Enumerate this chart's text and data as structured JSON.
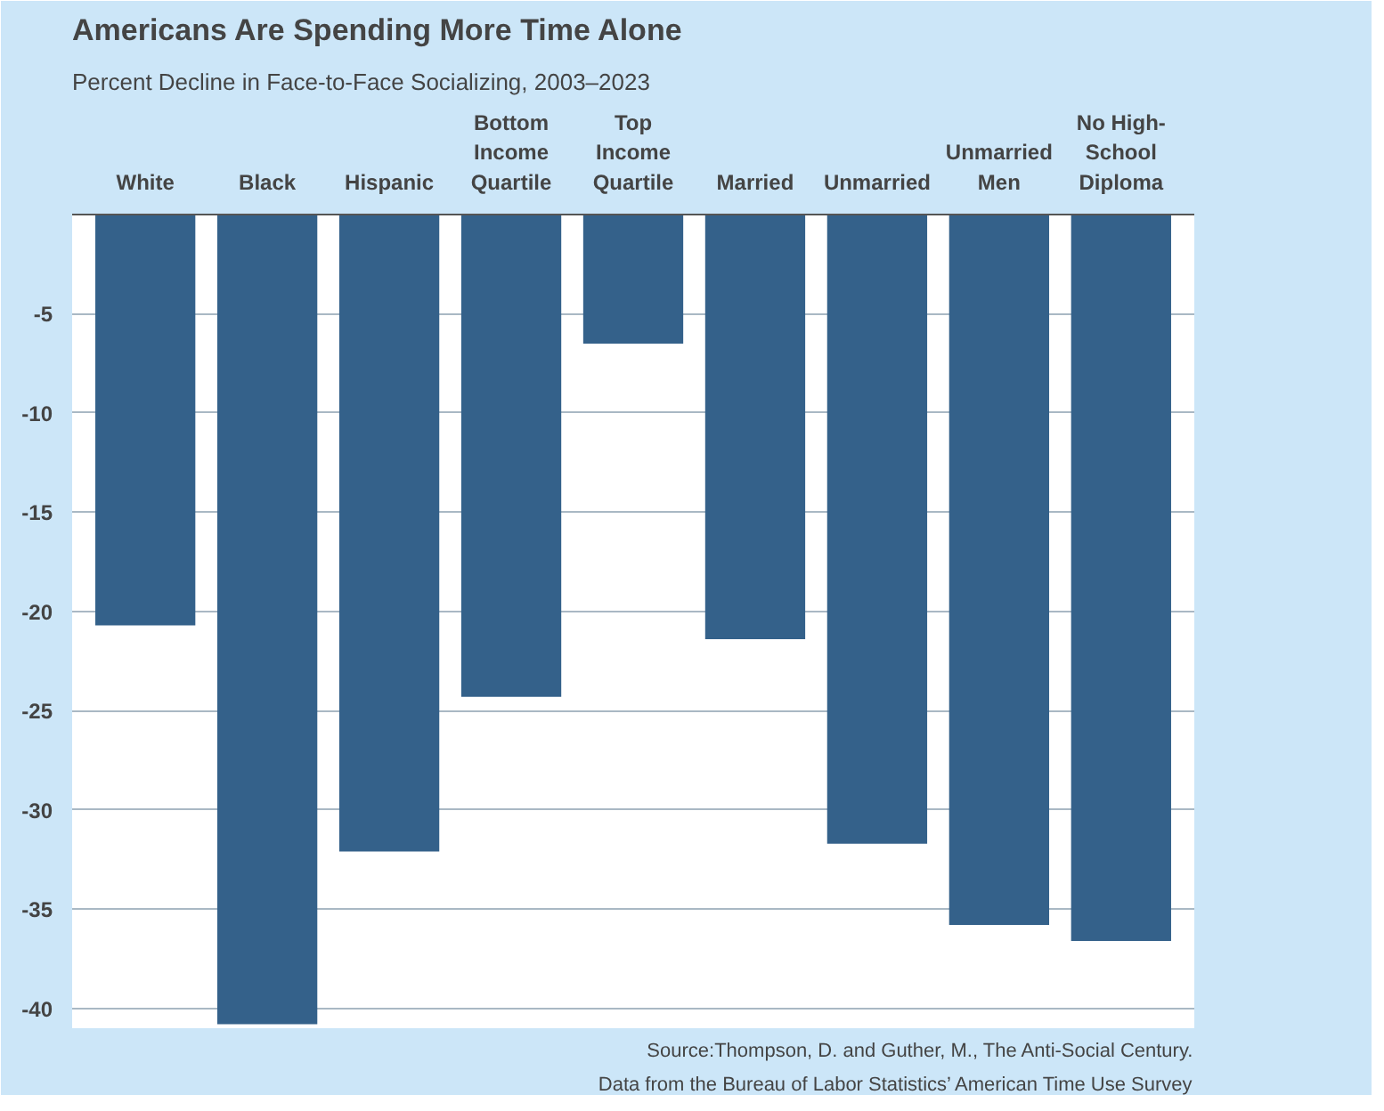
{
  "chart_data": {
    "type": "bar",
    "title": "Americans Are Spending More Time Alone",
    "subtitle": "Percent Decline in Face-to-Face Socializing, 2003–2023",
    "categories": [
      "White",
      "Black",
      "Hispanic",
      "Bottom\nIncome\nQuartile",
      "Top\nIncome\nQuartile",
      "Married",
      "Unmarried",
      "Unmarried\nMen",
      "No High-\nSchool\nDiploma"
    ],
    "values": [
      -20.7,
      -40.8,
      -32.1,
      -24.3,
      -6.5,
      -21.4,
      -31.7,
      -35.8,
      -36.6
    ],
    "color": "#34618a",
    "ylim": [
      -41,
      0
    ],
    "yticks": [
      {
        "value": 0,
        "label": null
      },
      -5,
      -10,
      -15,
      -20,
      -25,
      -30,
      -35,
      -40
    ],
    "grid": "y",
    "annotations": [
      "Source:Thompson, D. and Guther, M., The Anti-Social Century.",
      "Data from the Bureau of Labor Statistics’ American Time Use Survey"
    ]
  }
}
